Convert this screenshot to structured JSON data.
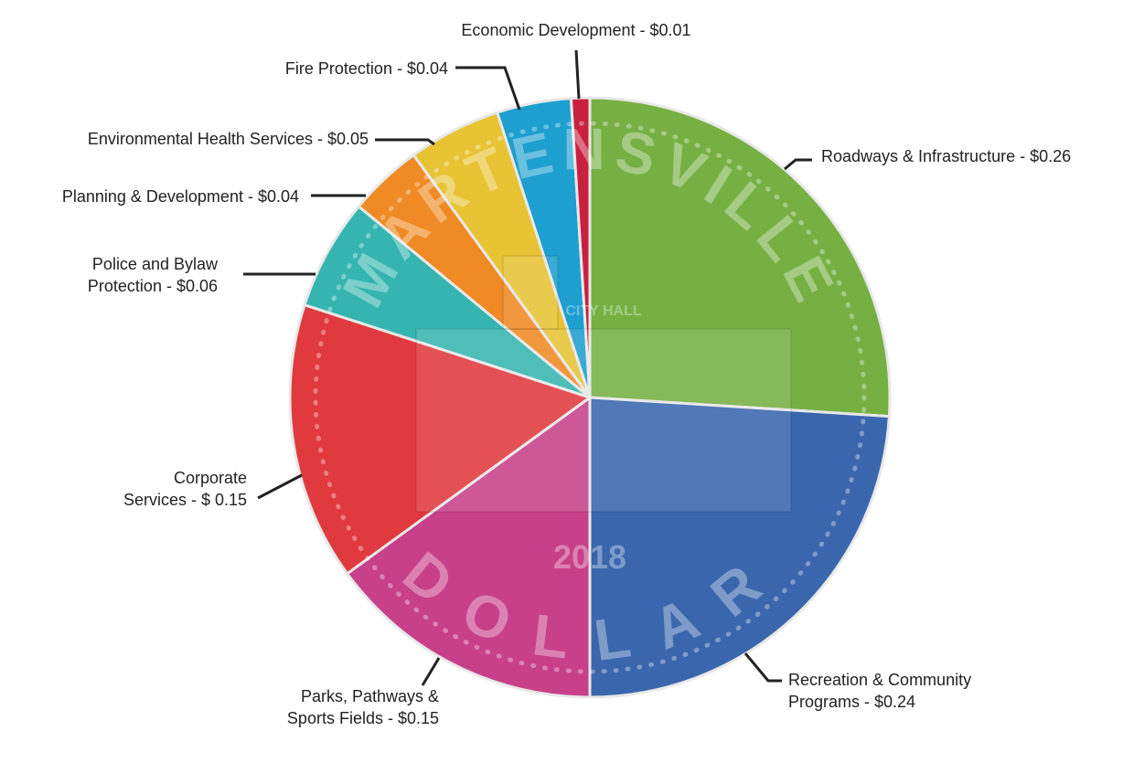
{
  "chart_data": {
    "type": "pie",
    "categories": [
      "Roadways & Infrastructure - $0.26",
      "Recreation & Community\nPrograms - $0.24",
      "Parks, Pathways &\nSports Fields - $0.15",
      "Corporate\nServices - $ 0.15",
      "Police and Bylaw\nProtection - $0.06",
      "Planning & Development - $0.04",
      "Environmental Health Services - $0.05",
      "Fire Protection - $0.04",
      "Economic Development - $0.01"
    ],
    "values": [
      0.26,
      0.24,
      0.15,
      0.15,
      0.06,
      0.04,
      0.05,
      0.04,
      0.01
    ],
    "colors": [
      "#76b043",
      "#3a66ad",
      "#c8408a",
      "#e03a3e",
      "#36b5b0",
      "#f08a24",
      "#e8c334",
      "#1d9fd0",
      "#c9203f"
    ],
    "coin_text": {
      "top": "MARTENSVILLE",
      "bottom": "DOLLAR",
      "year": "2018",
      "building": "CITY HALL"
    }
  }
}
